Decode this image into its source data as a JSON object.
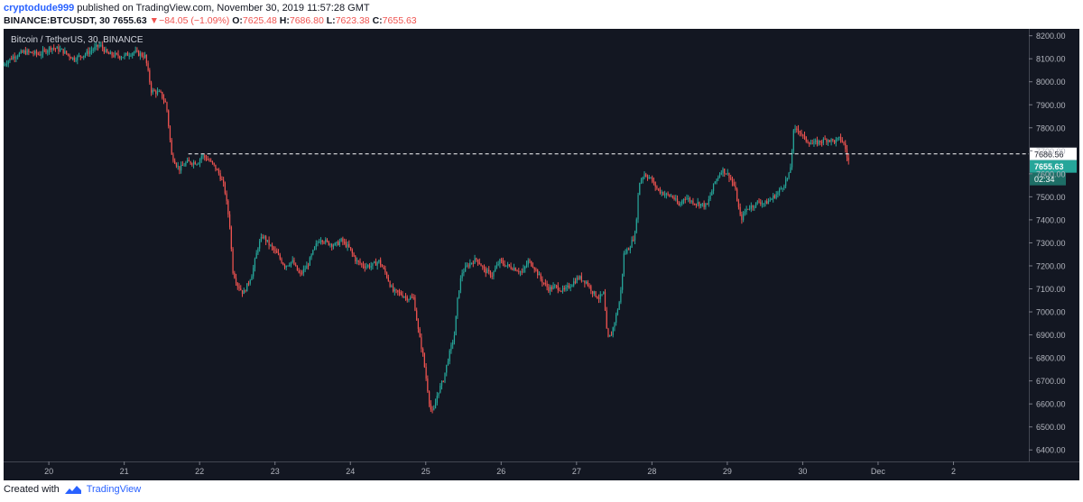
{
  "header": {
    "author": "cryptodude999",
    "published_text": " published on TradingView.com, November 30, 2019 11:57:28 GMT",
    "symbol_line": "BINANCE:BTCUSDT, 30",
    "last_price": "7655.63",
    "change_arrow": "▼",
    "change": "−84.05 (−1.09%)",
    "o_label": "O:",
    "o_value": "7625.48",
    "h_label": "H:",
    "h_value": "7686.80",
    "l_label": "L:",
    "l_value": "7623.38",
    "c_label": "C:",
    "c_value": "7655.63"
  },
  "footer": {
    "created_with": "Created with",
    "brand": "TradingView"
  },
  "chart_data": {
    "type": "candlestick",
    "title": "Bitcoin / TetherUS, 30, BINANCE",
    "ylim": [
      6350,
      8230
    ],
    "yticks": [
      6400,
      6500,
      6600,
      6700,
      6800,
      6900,
      7000,
      7100,
      7200,
      7300,
      7400,
      7500,
      7600,
      7700,
      7800,
      7900,
      8000,
      8100,
      8200
    ],
    "xticks": [
      {
        "label": "20",
        "day": 20
      },
      {
        "label": "21",
        "day": 21
      },
      {
        "label": "22",
        "day": 22
      },
      {
        "label": "23",
        "day": 23
      },
      {
        "label": "24",
        "day": 24
      },
      {
        "label": "25",
        "day": 25
      },
      {
        "label": "26",
        "day": 26
      },
      {
        "label": "27",
        "day": 27
      },
      {
        "label": "28",
        "day": 28
      },
      {
        "label": "29",
        "day": 29
      },
      {
        "label": "30",
        "day": 30
      },
      {
        "label": "Dec",
        "day": 31
      },
      {
        "label": "2",
        "day": 32
      }
    ],
    "xlim": [
      19.4,
      33.0
    ],
    "interval_minutes": 30,
    "price_path": [
      [
        19.4,
        8070
      ],
      [
        19.55,
        8110
      ],
      [
        19.7,
        8130
      ],
      [
        19.9,
        8120
      ],
      [
        20.05,
        8150
      ],
      [
        20.2,
        8135
      ],
      [
        20.35,
        8100
      ],
      [
        20.5,
        8120
      ],
      [
        20.7,
        8160
      ],
      [
        20.8,
        8120
      ],
      [
        21.0,
        8110
      ],
      [
        21.15,
        8130
      ],
      [
        21.3,
        8110
      ],
      [
        21.38,
        7960
      ],
      [
        21.5,
        7950
      ],
      [
        21.58,
        7900
      ],
      [
        21.65,
        7680
      ],
      [
        21.75,
        7620
      ],
      [
        21.85,
        7650
      ],
      [
        22.0,
        7650
      ],
      [
        22.05,
        7680
      ],
      [
        22.12,
        7665
      ],
      [
        22.2,
        7640
      ],
      [
        22.28,
        7600
      ],
      [
        22.35,
        7540
      ],
      [
        22.42,
        7380
      ],
      [
        22.46,
        7180
      ],
      [
        22.52,
        7120
      ],
      [
        22.6,
        7080
      ],
      [
        22.66,
        7120
      ],
      [
        22.72,
        7170
      ],
      [
        22.8,
        7290
      ],
      [
        22.86,
        7330
      ],
      [
        22.95,
        7290
      ],
      [
        23.05,
        7250
      ],
      [
        23.15,
        7200
      ],
      [
        23.25,
        7220
      ],
      [
        23.35,
        7160
      ],
      [
        23.45,
        7200
      ],
      [
        23.55,
        7280
      ],
      [
        23.62,
        7320
      ],
      [
        23.72,
        7300
      ],
      [
        23.82,
        7290
      ],
      [
        23.9,
        7310
      ],
      [
        24.0,
        7280
      ],
      [
        24.1,
        7220
      ],
      [
        24.2,
        7200
      ],
      [
        24.3,
        7200
      ],
      [
        24.4,
        7220
      ],
      [
        24.5,
        7160
      ],
      [
        24.58,
        7090
      ],
      [
        24.68,
        7080
      ],
      [
        24.78,
        7060
      ],
      [
        24.86,
        7060
      ],
      [
        24.93,
        6900
      ],
      [
        24.98,
        6820
      ],
      [
        25.03,
        6700
      ],
      [
        25.08,
        6580
      ],
      [
        25.12,
        6560
      ],
      [
        25.18,
        6650
      ],
      [
        25.25,
        6700
      ],
      [
        25.32,
        6800
      ],
      [
        25.4,
        6900
      ],
      [
        25.45,
        7080
      ],
      [
        25.5,
        7170
      ],
      [
        25.6,
        7210
      ],
      [
        25.7,
        7230
      ],
      [
        25.8,
        7180
      ],
      [
        25.9,
        7160
      ],
      [
        26.0,
        7220
      ],
      [
        26.1,
        7200
      ],
      [
        26.2,
        7190
      ],
      [
        26.3,
        7170
      ],
      [
        26.38,
        7220
      ],
      [
        26.45,
        7200
      ],
      [
        26.55,
        7140
      ],
      [
        26.65,
        7100
      ],
      [
        26.75,
        7110
      ],
      [
        26.85,
        7090
      ],
      [
        26.95,
        7120
      ],
      [
        27.05,
        7150
      ],
      [
        27.15,
        7130
      ],
      [
        27.25,
        7080
      ],
      [
        27.32,
        7060
      ],
      [
        27.38,
        7080
      ],
      [
        27.43,
        6880
      ],
      [
        27.48,
        6900
      ],
      [
        27.55,
        6990
      ],
      [
        27.6,
        7060
      ],
      [
        27.65,
        7250
      ],
      [
        27.72,
        7280
      ],
      [
        27.8,
        7340
      ],
      [
        27.85,
        7560
      ],
      [
        27.92,
        7600
      ],
      [
        28.0,
        7580
      ],
      [
        28.1,
        7530
      ],
      [
        28.2,
        7510
      ],
      [
        28.3,
        7500
      ],
      [
        28.38,
        7460
      ],
      [
        28.45,
        7500
      ],
      [
        28.55,
        7480
      ],
      [
        28.65,
        7470
      ],
      [
        28.75,
        7460
      ],
      [
        28.85,
        7560
      ],
      [
        28.95,
        7620
      ],
      [
        29.05,
        7590
      ],
      [
        29.12,
        7540
      ],
      [
        29.2,
        7400
      ],
      [
        29.28,
        7450
      ],
      [
        29.35,
        7460
      ],
      [
        29.45,
        7480
      ],
      [
        29.52,
        7470
      ],
      [
        29.6,
        7490
      ],
      [
        29.7,
        7520
      ],
      [
        29.78,
        7560
      ],
      [
        29.85,
        7600
      ],
      [
        29.9,
        7780
      ],
      [
        29.95,
        7800
      ],
      [
        30.05,
        7750
      ],
      [
        30.15,
        7730
      ],
      [
        30.25,
        7740
      ],
      [
        30.35,
        7750
      ],
      [
        30.45,
        7740
      ],
      [
        30.52,
        7755
      ],
      [
        30.58,
        7720
      ],
      [
        30.62,
        7655
      ]
    ],
    "reference_line": 7686.56,
    "reference_label": "7686.56",
    "last_price_label": "7655.63",
    "countdown_label": "02:34",
    "colors": {
      "background": "#131722",
      "up": "#26a69a",
      "down": "#ef5350",
      "axis_text": "#b2b5be",
      "reference_line": "#ffffff"
    }
  }
}
